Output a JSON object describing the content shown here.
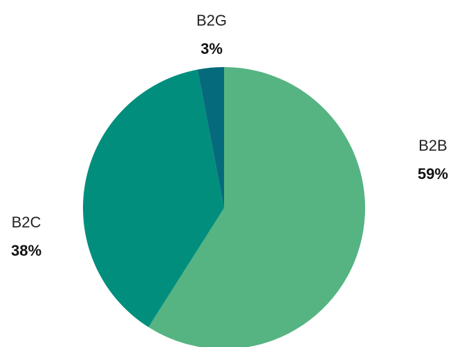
{
  "chart_data": {
    "type": "pie",
    "title": "",
    "categories": [
      "B2B",
      "B2C",
      "B2G"
    ],
    "values": [
      59,
      38,
      3
    ],
    "value_labels": [
      "59%",
      "38%",
      "3%"
    ],
    "colors": [
      "#55b482",
      "#018e7d",
      "#066a7d"
    ],
    "start": "12 o'clock",
    "direction": "clockwise",
    "legend": "none"
  }
}
